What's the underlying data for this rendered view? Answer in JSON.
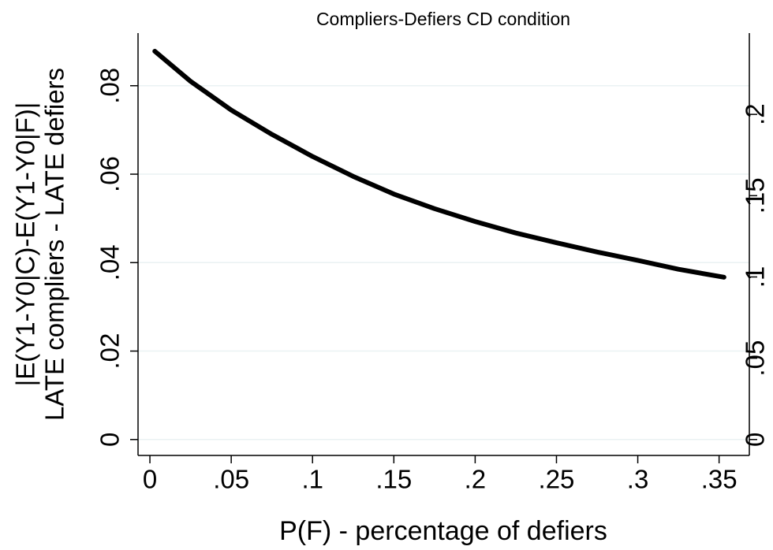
{
  "chart_data": {
    "type": "line",
    "title": "Compliers-Defiers CD condition",
    "x_label": "P(F) - percentage of defiers",
    "y_label": [
      "|E(Y1-Y0|C)-E(Y1-Y0|F)|",
      "LATE compliers - LATE defiers"
    ],
    "x": [
      0.003,
      0.025,
      0.05,
      0.075,
      0.1,
      0.125,
      0.15,
      0.175,
      0.2,
      0.225,
      0.25,
      0.275,
      0.3,
      0.325,
      0.353
    ],
    "series": [
      {
        "color": "#000000",
        "values": [
          0.0878,
          0.081,
          0.0745,
          0.069,
          0.064,
          0.0595,
          0.0555,
          0.0522,
          0.0493,
          0.0467,
          0.0445,
          0.0424,
          0.0405,
          0.0385,
          0.0367
        ]
      }
    ],
    "xlim": [
      -0.0073,
      0.3686
    ],
    "xticks": [
      0,
      {
        "value": 0.05,
        "label": ".05"
      },
      {
        "value": 0.1,
        "label": ".1"
      },
      {
        "value": 0.15,
        "label": ".15"
      },
      {
        "value": 0.2,
        "label": ".2"
      },
      {
        "value": 0.25,
        "label": ".25"
      },
      {
        "value": 0.3,
        "label": ".3"
      },
      {
        "value": 0.35,
        "label": ".35"
      }
    ],
    "ylim": [
      -0.0036,
      0.0919
    ],
    "yticks": [
      0,
      {
        "value": 0.02,
        "label": ".02"
      },
      {
        "value": 0.04,
        "label": ".04"
      },
      {
        "value": 0.06,
        "label": ".06"
      },
      {
        "value": 0.08,
        "label": ".08"
      }
    ],
    "y2lim": [
      -0.0098,
      0.25
    ],
    "y2ticks": [
      0,
      {
        "value": 0.05,
        "label": ".05"
      },
      {
        "value": 0.1,
        "label": ".1"
      },
      {
        "value": 0.15,
        "label": ".15"
      },
      {
        "value": 0.2,
        "label": ".2"
      }
    ],
    "grid": true
  }
}
